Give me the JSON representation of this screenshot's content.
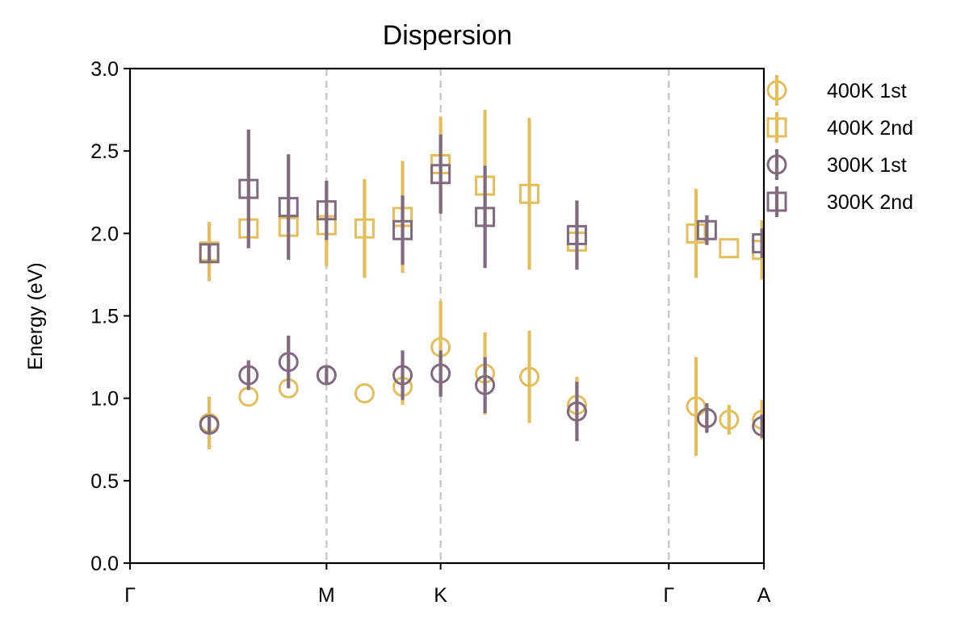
{
  "chart_data": {
    "type": "scatter",
    "title": "Dispersion",
    "xlabel": "",
    "ylabel": "Energy (eV)",
    "xlim": [
      0,
      1.0
    ],
    "ylim": [
      0.0,
      3.0
    ],
    "yticks": [
      "0.0",
      "0.5",
      "1.0",
      "1.5",
      "2.0",
      "2.5",
      "3.0"
    ],
    "xticks": [
      {
        "label": "Γ",
        "x": 0.0
      },
      {
        "label": "M",
        "x": 0.31
      },
      {
        "label": "K",
        "x": 0.49
      },
      {
        "label": "Γ",
        "x": 0.85
      },
      {
        "label": "A",
        "x": 1.0
      }
    ],
    "dashed_vlines": [
      0.31,
      0.49,
      0.85
    ],
    "legend_position": "outside-right",
    "series": [
      {
        "name": "400K 1st",
        "marker": "circle",
        "color": "#E3BE5B",
        "points": [
          {
            "x": 0.125,
            "y": 0.85,
            "err": 0.16
          },
          {
            "x": 0.187,
            "y": 1.01,
            "err": 0.0
          },
          {
            "x": 0.25,
            "y": 1.06,
            "err": 0.0
          },
          {
            "x": 0.31,
            "y": 1.14,
            "err": 0.0
          },
          {
            "x": 0.37,
            "y": 1.03,
            "err": 0.0
          },
          {
            "x": 0.43,
            "y": 1.07,
            "err": 0.11
          },
          {
            "x": 0.49,
            "y": 1.31,
            "err": 0.28
          },
          {
            "x": 0.56,
            "y": 1.15,
            "err": 0.25
          },
          {
            "x": 0.63,
            "y": 1.13,
            "err": 0.28
          },
          {
            "x": 0.705,
            "y": 0.96,
            "err": 0.17
          },
          {
            "x": 0.893,
            "y": 0.95,
            "err": 0.3
          },
          {
            "x": 0.945,
            "y": 0.87,
            "err": 0.09
          },
          {
            "x": 0.997,
            "y": 0.87,
            "err": 0.12
          }
        ]
      },
      {
        "name": "400K 2nd",
        "marker": "square",
        "color": "#E3BE5B",
        "points": [
          {
            "x": 0.125,
            "y": 1.89,
            "err": 0.18
          },
          {
            "x": 0.187,
            "y": 2.03,
            "err": 0.0
          },
          {
            "x": 0.25,
            "y": 2.04,
            "err": 0.0
          },
          {
            "x": 0.31,
            "y": 2.05,
            "err": 0.25
          },
          {
            "x": 0.37,
            "y": 2.03,
            "err": 0.3
          },
          {
            "x": 0.43,
            "y": 2.1,
            "err": 0.34
          },
          {
            "x": 0.49,
            "y": 2.42,
            "err": 0.29
          },
          {
            "x": 0.56,
            "y": 2.29,
            "err": 0.46
          },
          {
            "x": 0.63,
            "y": 2.24,
            "err": 0.46
          },
          {
            "x": 0.705,
            "y": 1.95,
            "err": 0.0
          },
          {
            "x": 0.893,
            "y": 2.0,
            "err": 0.27
          },
          {
            "x": 0.945,
            "y": 1.91,
            "err": 0.0
          },
          {
            "x": 0.997,
            "y": 1.9,
            "err": 0.18
          }
        ]
      },
      {
        "name": "300K 1st",
        "marker": "circle",
        "color": "#7F6A7E",
        "points": [
          {
            "x": 0.125,
            "y": 0.84,
            "err": 0.06
          },
          {
            "x": 0.187,
            "y": 1.14,
            "err": 0.09
          },
          {
            "x": 0.25,
            "y": 1.22,
            "err": 0.16
          },
          {
            "x": 0.31,
            "y": 1.14,
            "err": 0.05
          },
          {
            "x": 0.43,
            "y": 1.14,
            "err": 0.15
          },
          {
            "x": 0.49,
            "y": 1.15,
            "err": 0.14
          },
          {
            "x": 0.56,
            "y": 1.08,
            "err": 0.17
          },
          {
            "x": 0.705,
            "y": 0.92,
            "err": 0.18
          },
          {
            "x": 0.91,
            "y": 0.88,
            "err": 0.09
          },
          {
            "x": 0.997,
            "y": 0.83,
            "err": 0.07
          }
        ]
      },
      {
        "name": "300K 2nd",
        "marker": "square",
        "color": "#7F6A7E",
        "points": [
          {
            "x": 0.125,
            "y": 1.88,
            "err": 0.06
          },
          {
            "x": 0.187,
            "y": 2.27,
            "err": 0.36
          },
          {
            "x": 0.25,
            "y": 2.16,
            "err": 0.32
          },
          {
            "x": 0.31,
            "y": 2.14,
            "err": 0.18
          },
          {
            "x": 0.43,
            "y": 2.02,
            "err": 0.21
          },
          {
            "x": 0.49,
            "y": 2.36,
            "err": 0.24
          },
          {
            "x": 0.56,
            "y": 2.1,
            "err": 0.31
          },
          {
            "x": 0.705,
            "y": 1.99,
            "err": 0.21
          },
          {
            "x": 0.91,
            "y": 2.02,
            "err": 0.09
          },
          {
            "x": 0.997,
            "y": 1.94,
            "err": 0.09
          }
        ]
      }
    ]
  }
}
